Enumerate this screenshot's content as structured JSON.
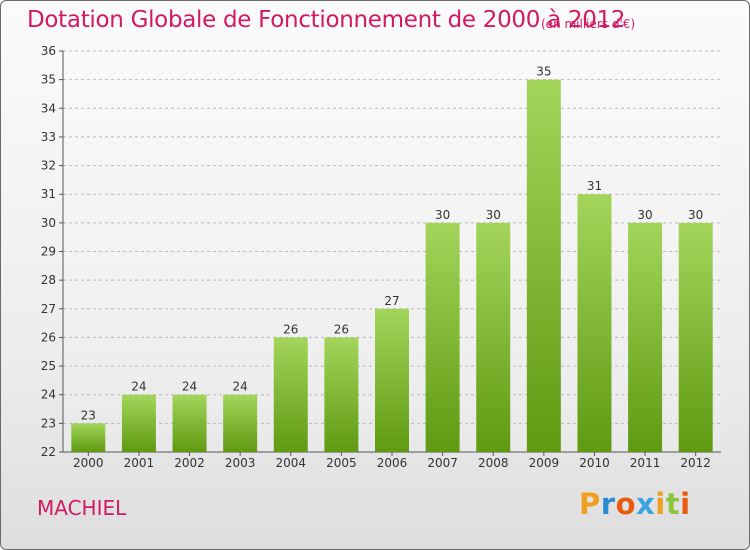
{
  "header": {
    "title": "Dotation Globale de Fonctionnement de 2000 à 2012",
    "unit": "(en milliers d'€)"
  },
  "footer": {
    "commune": "MACHIEL",
    "logo_text": "Proxiti",
    "logo_colors": [
      "#f0a020",
      "#2a8ad4",
      "#e85a10",
      "#3aa3e0",
      "#f0a020",
      "#8cc63f",
      "#e85a10"
    ]
  },
  "colors": {
    "title": "#d11a63",
    "bar_light": "#a3d55a",
    "bar_dark": "#5f9a12"
  },
  "chart_data": {
    "type": "bar",
    "title": "Dotation Globale de Fonctionnement de 2000 à 2012",
    "categories": [
      "2000",
      "2001",
      "2002",
      "2003",
      "2004",
      "2005",
      "2006",
      "2007",
      "2008",
      "2009",
      "2010",
      "2011",
      "2012"
    ],
    "values": [
      23,
      24,
      24,
      24,
      26,
      26,
      27,
      30,
      30,
      35,
      31,
      30,
      30
    ],
    "xlabel": "",
    "ylabel": "",
    "ylim": [
      22,
      36
    ],
    "yticks": [
      22,
      23,
      24,
      25,
      26,
      27,
      28,
      29,
      30,
      31,
      32,
      33,
      34,
      35,
      36
    ],
    "grid": true
  }
}
